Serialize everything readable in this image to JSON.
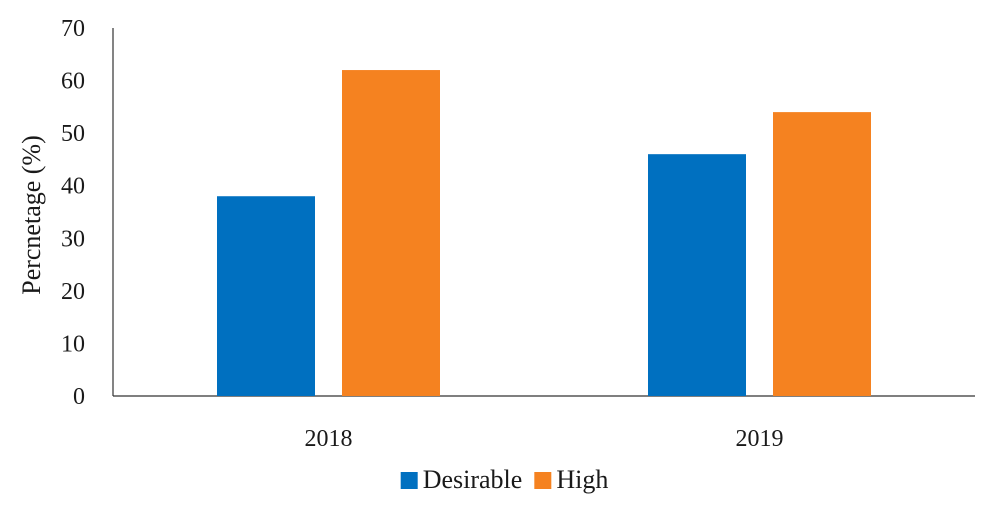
{
  "chart_data": {
    "type": "bar",
    "title": "",
    "xlabel": "",
    "ylabel": "Percnetage (%)",
    "categories": [
      "2018",
      "2019"
    ],
    "series": [
      {
        "name": "Desirable",
        "color": "#0070C0",
        "values": [
          38,
          46
        ]
      },
      {
        "name": "High",
        "color": "#F58220",
        "values": [
          62,
          54
        ]
      }
    ],
    "ylim": [
      0,
      70
    ],
    "yticks": [
      0,
      10,
      20,
      30,
      40,
      50,
      60,
      70
    ],
    "grid": false,
    "legend": "bottom-center"
  }
}
